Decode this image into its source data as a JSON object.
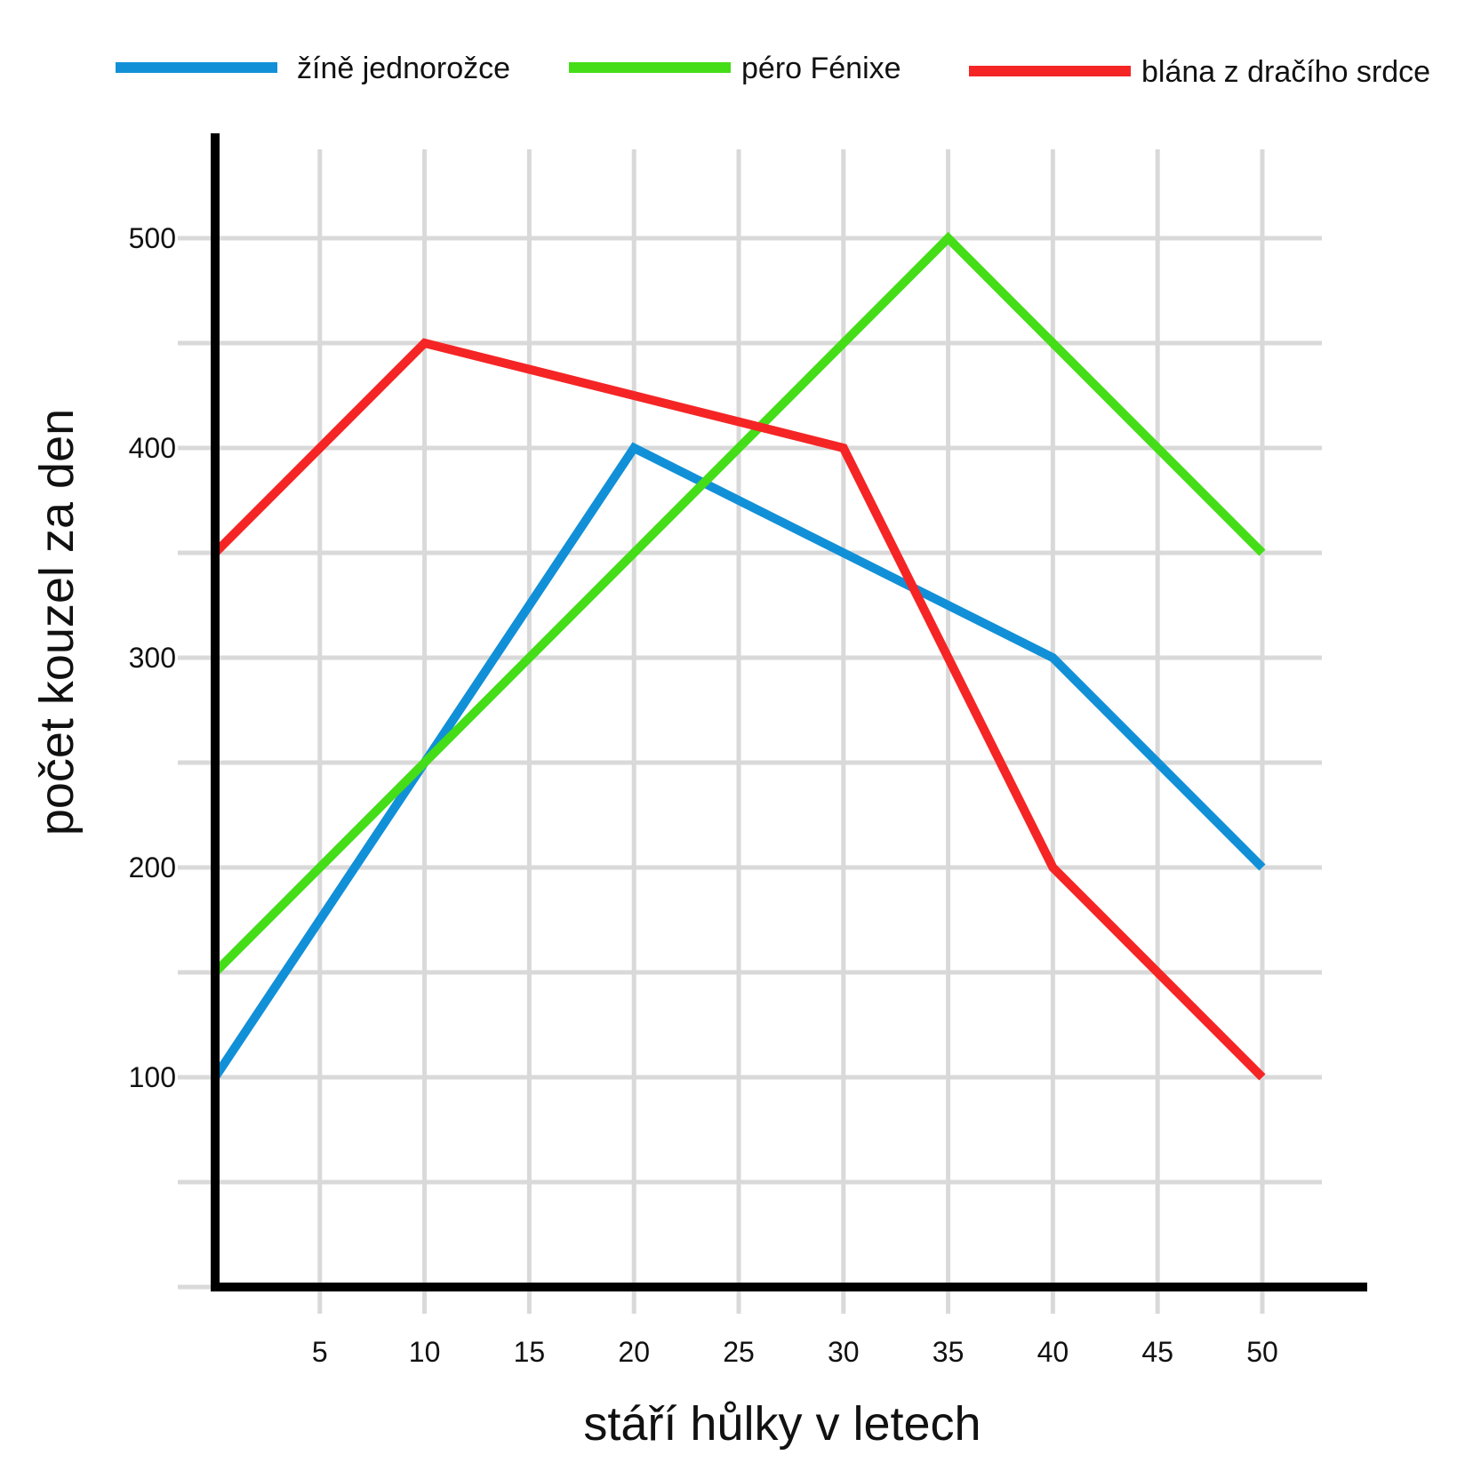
{
  "chart_data": {
    "type": "line",
    "xlabel": "stáří hůlky v letech",
    "ylabel": "počet kouzel za den",
    "xlim": [
      0,
      55
    ],
    "ylim": [
      0,
      550
    ],
    "x_ticks": [
      5,
      10,
      15,
      20,
      25,
      30,
      35,
      40,
      45,
      50
    ],
    "y_ticks": [
      100,
      200,
      300,
      400,
      500
    ],
    "x_grid": [
      5,
      10,
      15,
      20,
      25,
      30,
      35,
      40,
      45,
      50
    ],
    "y_grid": [
      50,
      100,
      150,
      200,
      250,
      300,
      350,
      400,
      450,
      500
    ],
    "grid": true,
    "legend_position": "top",
    "series": [
      {
        "name": "žíně jednorožce",
        "color": "#1190d8",
        "x": [
          0,
          20,
          40,
          50
        ],
        "y": [
          100,
          400,
          300,
          200
        ]
      },
      {
        "name": "péro Fénixe",
        "color": "#44dd18",
        "x": [
          0,
          35,
          50
        ],
        "y": [
          150,
          500,
          350
        ]
      },
      {
        "name": "blána z dračího srdce",
        "color": "#f52525",
        "x": [
          0,
          10,
          30,
          40,
          50
        ],
        "y": [
          350,
          450,
          400,
          200,
          100
        ]
      }
    ]
  }
}
